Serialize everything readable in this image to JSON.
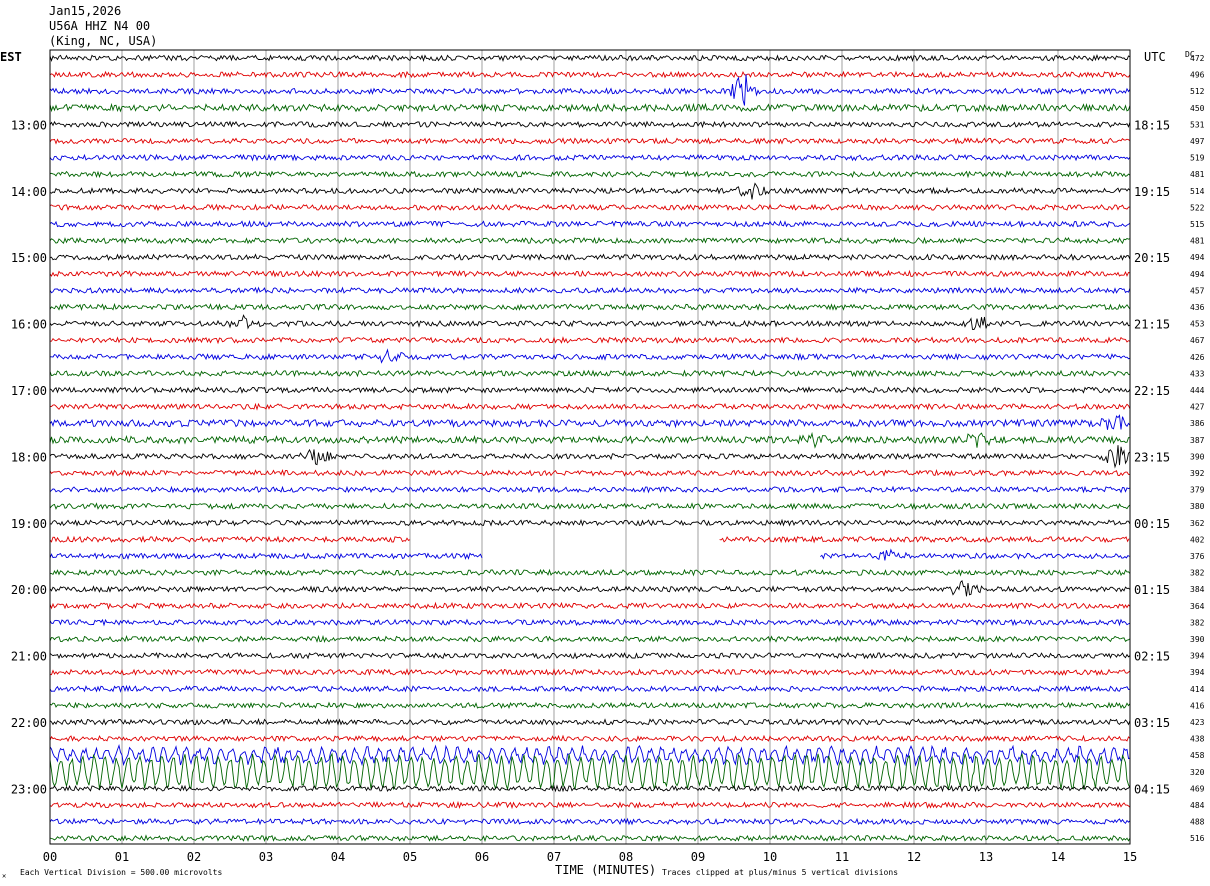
{
  "header": {
    "date": "Jan15,2026",
    "station": "U56A HHZ N4 00",
    "location": "(King, NC, USA)"
  },
  "left_timezone": "EST",
  "right_timezone": "UTC",
  "dc_label": "DC",
  "footer": {
    "scale_note": "Each Vertical Division =  500.00 microvolts",
    "clip_note": "Traces clipped at plus/minus 5 vertical divisions"
  },
  "chart_data": {
    "type": "line",
    "title": "",
    "xlabel": "TIME (MINUTES)",
    "ylabel": "",
    "xlim": [
      0,
      15
    ],
    "x_ticks": [
      "00",
      "01",
      "02",
      "03",
      "04",
      "05",
      "06",
      "07",
      "08",
      "09",
      "10",
      "11",
      "12",
      "13",
      "14",
      "15"
    ],
    "vertical_grid": true,
    "trace_colors": [
      "#000000",
      "#e00000",
      "#0000e0",
      "#006400"
    ],
    "left_labels": [
      {
        "row": 4,
        "text": "13:00"
      },
      {
        "row": 8,
        "text": "14:00"
      },
      {
        "row": 12,
        "text": "15:00"
      },
      {
        "row": 16,
        "text": "16:00"
      },
      {
        "row": 20,
        "text": "17:00"
      },
      {
        "row": 24,
        "text": "18:00"
      },
      {
        "row": 28,
        "text": "19:00"
      },
      {
        "row": 32,
        "text": "20:00"
      },
      {
        "row": 36,
        "text": "21:00"
      },
      {
        "row": 40,
        "text": "22:00"
      },
      {
        "row": 44,
        "text": "23:00"
      }
    ],
    "right_labels": [
      {
        "row": 4,
        "text": "18:15"
      },
      {
        "row": 8,
        "text": "19:15"
      },
      {
        "row": 12,
        "text": "20:15"
      },
      {
        "row": 16,
        "text": "21:15"
      },
      {
        "row": 20,
        "text": "22:15"
      },
      {
        "row": 24,
        "text": "23:15"
      },
      {
        "row": 28,
        "text": "00:15"
      },
      {
        "row": 32,
        "text": "01:15"
      },
      {
        "row": 36,
        "text": "02:15"
      },
      {
        "row": 40,
        "text": "03:15"
      },
      {
        "row": 44,
        "text": "04:15"
      }
    ],
    "dc_offsets": [
      472,
      496,
      512,
      450,
      531,
      497,
      519,
      481,
      514,
      522,
      515,
      481,
      494,
      494,
      457,
      436,
      453,
      467,
      426,
      433,
      444,
      427,
      386,
      387,
      390,
      392,
      379,
      380,
      362,
      402,
      376,
      382,
      384,
      364,
      382,
      390,
      394,
      394,
      414,
      416,
      423,
      438,
      458,
      320,
      469,
      484,
      488,
      516
    ],
    "trace_segments": {
      "29": [
        [
          0,
          5
        ],
        [
          9.3,
          15
        ]
      ],
      "30": [
        [
          0,
          6
        ],
        [
          10.7,
          15
        ]
      ]
    },
    "events": [
      {
        "row": 2,
        "minute": 9.65,
        "amplitude": 20
      },
      {
        "row": 8,
        "minute": 9.75,
        "amplitude": 7
      },
      {
        "row": 16,
        "minute": 2.7,
        "amplitude": 6
      },
      {
        "row": 16,
        "minute": 12.9,
        "amplitude": 6
      },
      {
        "row": 18,
        "minute": 4.7,
        "amplitude": 6
      },
      {
        "row": 22,
        "minute": 14.8,
        "amplitude": 6
      },
      {
        "row": 23,
        "minute": 10.6,
        "amplitude": 6
      },
      {
        "row": 23,
        "minute": 12.9,
        "amplitude": 6
      },
      {
        "row": 24,
        "minute": 3.7,
        "amplitude": 7
      },
      {
        "row": 24,
        "minute": 14.8,
        "amplitude": 10
      },
      {
        "row": 30,
        "minute": 11.7,
        "amplitude": 6
      },
      {
        "row": 32,
        "minute": 12.7,
        "amplitude": 9
      },
      {
        "row": 42,
        "minute": 3.1,
        "amplitude": 18
      },
      {
        "row": 42,
        "minute": 4.5,
        "amplitude": 14
      }
    ]
  }
}
